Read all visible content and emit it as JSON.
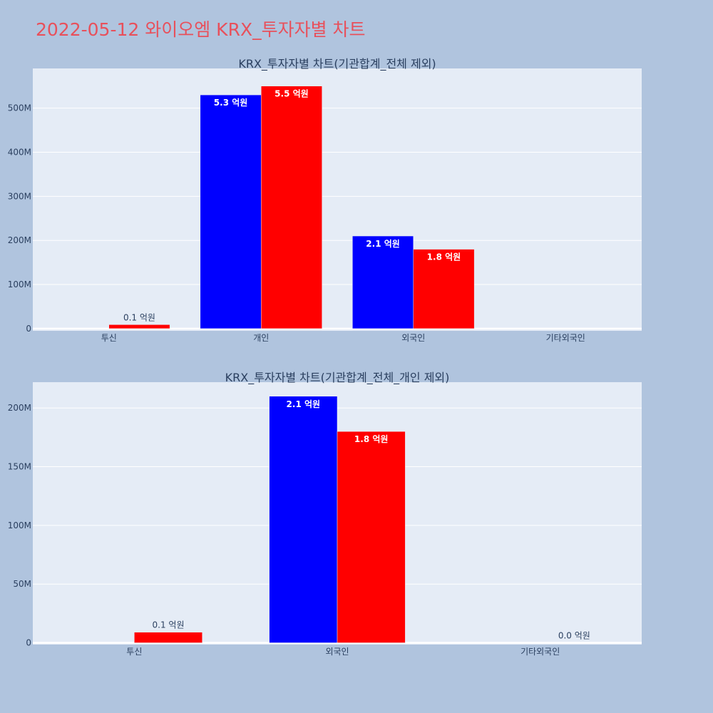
{
  "page": {
    "title": "2022-05-12 와이오엠 KRX_투자자별 차트"
  },
  "colors": {
    "background": "#b0c4de",
    "plot_bg": "#e5ecf6",
    "title": "#e8505b",
    "series_a": "#0000ff",
    "series_b": "#ff0000",
    "text": "#2a3f5f",
    "grid": "#ffffff"
  },
  "chart_data": [
    {
      "type": "bar",
      "title": "KRX_투자자별 차트(기관합계_전체 제외)",
      "categories": [
        "투신",
        "개인",
        "외국인",
        "기타외국인"
      ],
      "ylim": [
        -5000000,
        590000000
      ],
      "yticks": [
        0,
        100000000,
        200000000,
        300000000,
        400000000,
        500000000
      ],
      "ytick_labels": [
        "0",
        "100M",
        "200M",
        "300M",
        "400M",
        "500M"
      ],
      "grid": true,
      "series": [
        {
          "color": "#0000ff",
          "values": [
            0,
            530000000,
            210000000,
            0
          ],
          "labels": [
            "",
            "5.3 억원",
            "2.1 억원",
            ""
          ]
        },
        {
          "color": "#ff0000",
          "values": [
            9000000,
            550000000,
            180000000,
            0
          ],
          "labels": [
            "0.1 억원",
            "5.5 억원",
            "1.8 억원",
            ""
          ]
        }
      ]
    },
    {
      "type": "bar",
      "title": "KRX_투자자별 차트(기관합계_전체_개인 제외)",
      "categories": [
        "투신",
        "외국인",
        "기타외국인"
      ],
      "ylim": [
        -1500000,
        222000000
      ],
      "yticks": [
        0,
        50000000,
        100000000,
        150000000,
        200000000
      ],
      "ytick_labels": [
        "0",
        "50M",
        "100M",
        "150M",
        "200M"
      ],
      "grid": true,
      "series": [
        {
          "color": "#0000ff",
          "values": [
            0,
            210000000,
            0
          ],
          "labels": [
            "",
            "2.1 억원",
            ""
          ]
        },
        {
          "color": "#ff0000",
          "values": [
            9000000,
            180000000,
            0
          ],
          "labels": [
            "0.1 억원",
            "1.8 억원",
            "0.0 억원"
          ]
        }
      ]
    }
  ]
}
